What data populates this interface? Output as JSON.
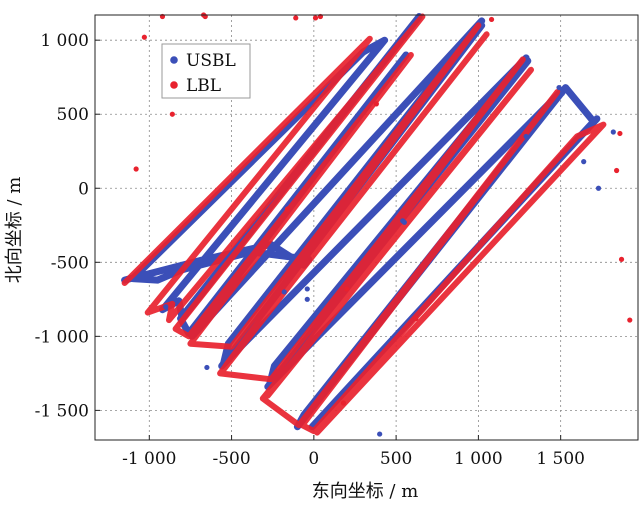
{
  "chart_data": {
    "type": "scatter",
    "title": "",
    "xlabel": "东向坐标 / m",
    "ylabel": "北向坐标 / m",
    "xlim": [
      -1330,
      1970
    ],
    "ylim": [
      -1700,
      1170
    ],
    "xticks": [
      -1000,
      -500,
      0,
      500,
      1000,
      1500
    ],
    "xtick_labels": [
      "-1 000",
      "-500",
      "0",
      "500",
      "1 000",
      "1 500"
    ],
    "yticks": [
      1000,
      500,
      0,
      -500,
      -1000,
      -1500
    ],
    "ytick_labels": [
      "1 000",
      "500",
      "0",
      "-500",
      "-1 000",
      "-1 500"
    ],
    "grid": true,
    "legend_position": "top-left",
    "series": [
      {
        "name": "USBL",
        "color": "#3b4fb8",
        "path": [
          [
            -1150,
            -620
          ],
          [
            -660,
            -480
          ],
          [
            -260,
            -380
          ],
          [
            -60,
            -520
          ],
          [
            -30,
            -480
          ],
          [
            -380,
            -430
          ],
          [
            -800,
            -550
          ],
          [
            -950,
            -620
          ],
          [
            -1100,
            -610
          ],
          [
            300,
            920
          ],
          [
            430,
            1000
          ],
          [
            -920,
            -820
          ],
          [
            -820,
            -760
          ],
          [
            -800,
            -880
          ],
          [
            640,
            1160
          ],
          [
            -810,
            -880
          ],
          [
            -760,
            -980
          ],
          [
            560,
            900
          ],
          [
            -740,
            -1000
          ],
          [
            1020,
            1130
          ],
          [
            -520,
            -1050
          ],
          [
            -550,
            -1190
          ],
          [
            1020,
            1100
          ],
          [
            -560,
            -1200
          ],
          [
            1290,
            880
          ],
          [
            -240,
            -1200
          ],
          [
            -270,
            -1330
          ],
          [
            1300,
            860
          ],
          [
            -280,
            -1340
          ],
          [
            1500,
            650
          ],
          [
            -60,
            -1530
          ],
          [
            -100,
            -1610
          ],
          [
            1530,
            680
          ],
          [
            1700,
            450
          ],
          [
            -10,
            -1610
          ],
          [
            1720,
            470
          ]
        ]
      },
      {
        "name": "LBL",
        "color": "#e8222e",
        "path": [
          [
            -1150,
            -640
          ],
          [
            340,
            1010
          ],
          [
            -1010,
            -840
          ],
          [
            -860,
            -780
          ],
          [
            -880,
            -890
          ],
          [
            660,
            1160
          ],
          [
            -840,
            -950
          ],
          [
            -760,
            -1000
          ],
          [
            590,
            900
          ],
          [
            -750,
            -1050
          ],
          [
            -500,
            -1070
          ],
          [
            1000,
            1100
          ],
          [
            -530,
            -1190
          ],
          [
            -560,
            -1240
          ],
          [
            1050,
            1040
          ],
          [
            -570,
            -1250
          ],
          [
            -260,
            -1290
          ],
          [
            1270,
            870
          ],
          [
            -280,
            -1400
          ],
          [
            1320,
            800
          ],
          [
            -310,
            -1420
          ],
          [
            -90,
            -1600
          ],
          [
            1480,
            650
          ],
          [
            -70,
            -1600
          ],
          [
            0,
            -1640
          ],
          [
            1600,
            350
          ],
          [
            1760,
            430
          ],
          [
            20,
            -1650
          ]
        ]
      }
    ],
    "scatter_points": [
      {
        "s": "LBL",
        "x": -1030,
        "y": 1020
      },
      {
        "s": "LBL",
        "x": -920,
        "y": 1160
      },
      {
        "s": "LBL",
        "x": -670,
        "y": 1170
      },
      {
        "s": "LBL",
        "x": -660,
        "y": 1160
      },
      {
        "s": "LBL",
        "x": -1080,
        "y": 130
      },
      {
        "s": "LBL",
        "x": -860,
        "y": 500
      },
      {
        "s": "LBL",
        "x": -110,
        "y": 1150
      },
      {
        "s": "LBL",
        "x": 10,
        "y": 1150
      },
      {
        "s": "LBL",
        "x": 40,
        "y": 1160
      },
      {
        "s": "LBL",
        "x": -160,
        "y": -140
      },
      {
        "s": "LBL",
        "x": 380,
        "y": 570
      },
      {
        "s": "LBL",
        "x": 620,
        "y": -880
      },
      {
        "s": "LBL",
        "x": 1920,
        "y": -890
      },
      {
        "s": "LBL",
        "x": 1870,
        "y": -480
      },
      {
        "s": "LBL",
        "x": 1860,
        "y": 370
      },
      {
        "s": "LBL",
        "x": 1840,
        "y": 120
      },
      {
        "s": "LBL",
        "x": 1080,
        "y": 1140
      },
      {
        "s": "LBL",
        "x": 180,
        "y": -1450
      },
      {
        "s": "LBL",
        "x": 200,
        "y": -680
      },
      {
        "s": "USBL",
        "x": 400,
        "y": -1660
      },
      {
        "s": "USBL",
        "x": 540,
        "y": -220
      },
      {
        "s": "USBL",
        "x": 1730,
        "y": 0
      },
      {
        "s": "USBL",
        "x": 1640,
        "y": 180
      },
      {
        "s": "USBL",
        "x": 1290,
        "y": 350
      },
      {
        "s": "USBL",
        "x": 1820,
        "y": 380
      },
      {
        "s": "USBL",
        "x": -650,
        "y": -1210
      },
      {
        "s": "USBL",
        "x": -900,
        "y": -800
      },
      {
        "s": "USBL",
        "x": 940,
        "y": 20
      },
      {
        "s": "USBL",
        "x": 550,
        "y": -230
      },
      {
        "s": "USBL",
        "x": -40,
        "y": -680
      },
      {
        "s": "USBL",
        "x": -40,
        "y": -750
      },
      {
        "s": "USBL",
        "x": -180,
        "y": -700
      },
      {
        "s": "USBL",
        "x": 1490,
        "y": 680
      },
      {
        "s": "USBL",
        "x": 1510,
        "y": 640
      }
    ]
  }
}
